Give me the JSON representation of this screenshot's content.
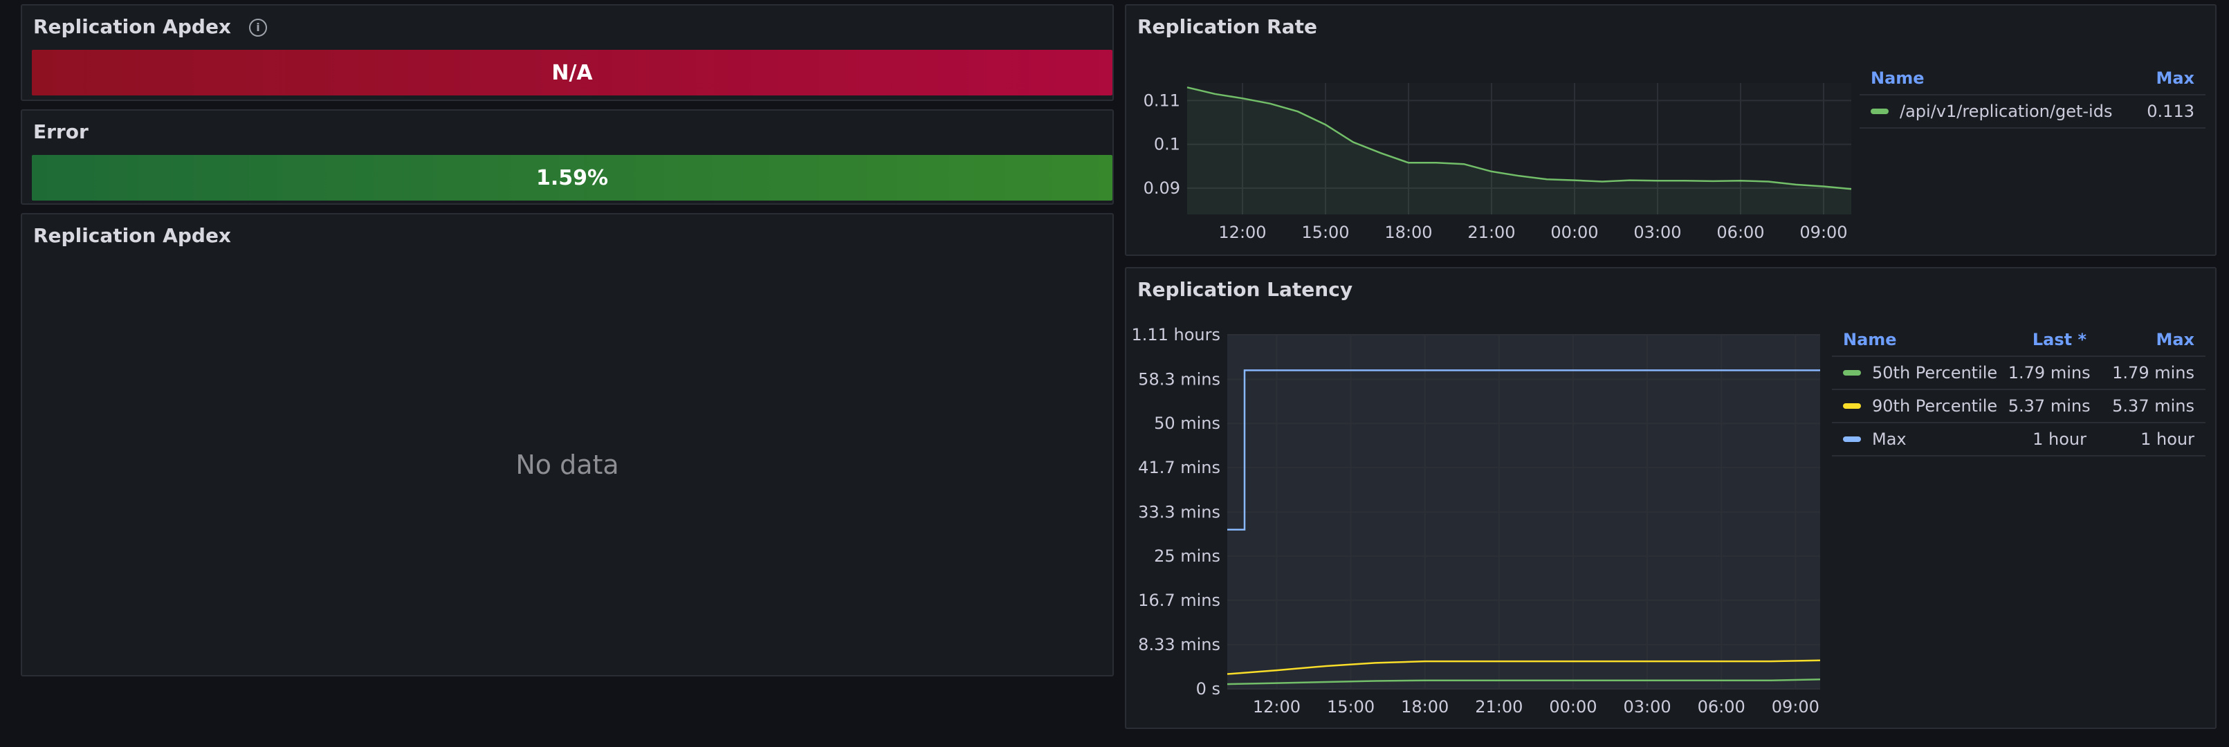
{
  "panels": {
    "apdex_stat": {
      "title": "Replication Apdex",
      "value": "N/A"
    },
    "error_stat": {
      "title": "Error",
      "value": "1.59%"
    },
    "apdex_chart": {
      "title": "Replication Apdex",
      "empty": "No data"
    },
    "rate": {
      "title": "Replication Rate"
    },
    "latency": {
      "title": "Replication Latency"
    }
  },
  "colors": {
    "green": "#73bf69",
    "yellow": "#fade2a",
    "blue": "#8ab8ff",
    "stat_red_from": "#8e1122",
    "stat_red_to": "#ad0a3d",
    "stat_green_from": "#1f6b36",
    "stat_green_to": "#37872d"
  },
  "legends": {
    "rate": {
      "headers": [
        "Name",
        "Max"
      ],
      "rows": [
        {
          "name": "/api/v1/replication/get-ids",
          "color": "#73bf69",
          "max": "0.113"
        }
      ]
    },
    "latency": {
      "headers": [
        "Name",
        "Last *",
        "Max"
      ],
      "rows": [
        {
          "name": "50th Percentile",
          "color": "#73bf69",
          "last": "1.79 mins",
          "max": "1.79 mins"
        },
        {
          "name": "90th Percentile",
          "color": "#fade2a",
          "last": "5.37 mins",
          "max": "5.37 mins"
        },
        {
          "name": "Max",
          "color": "#8ab8ff",
          "last": "1 hour",
          "max": "1 hour"
        }
      ]
    }
  },
  "chart_data": [
    {
      "type": "line",
      "title": "Replication Rate",
      "x_ticks": [
        "12:00",
        "15:00",
        "18:00",
        "21:00",
        "00:00",
        "03:00",
        "06:00",
        "09:00"
      ],
      "y_ticks": [
        {
          "label": "0.11",
          "value": 0.11
        },
        {
          "label": "0.1",
          "value": 0.1
        },
        {
          "label": "0.09",
          "value": 0.09
        }
      ],
      "ylim": [
        0.084,
        0.114
      ],
      "xlim": [
        10.0,
        34.0
      ],
      "grid": true,
      "series": [
        {
          "name": "/api/v1/replication/get-ids",
          "color": "#73bf69",
          "x": [
            10,
            11,
            12,
            13,
            14,
            15,
            16,
            17,
            18,
            19,
            20,
            21,
            22,
            23,
            24,
            25,
            26,
            27,
            28,
            29,
            30,
            31,
            32,
            33,
            34
          ],
          "y": [
            0.113,
            0.1115,
            0.1105,
            0.1093,
            0.1075,
            0.1045,
            0.1005,
            0.098,
            0.0958,
            0.0958,
            0.0955,
            0.0938,
            0.0928,
            0.092,
            0.0918,
            0.0915,
            0.0918,
            0.0917,
            0.0917,
            0.0916,
            0.0917,
            0.0915,
            0.0908,
            0.0904,
            0.0898
          ]
        }
      ]
    },
    {
      "type": "line",
      "title": "Replication Latency",
      "x_ticks": [
        "12:00",
        "15:00",
        "18:00",
        "21:00",
        "00:00",
        "03:00",
        "06:00",
        "09:00"
      ],
      "y_ticks": [
        {
          "label": "1.11 hours",
          "value": 66.7
        },
        {
          "label": "58.3 mins",
          "value": 58.3
        },
        {
          "label": "50 mins",
          "value": 50
        },
        {
          "label": "41.7 mins",
          "value": 41.7
        },
        {
          "label": "33.3 mins",
          "value": 33.3
        },
        {
          "label": "25 mins",
          "value": 25
        },
        {
          "label": "16.7 mins",
          "value": 16.7
        },
        {
          "label": "8.33 mins",
          "value": 8.33
        },
        {
          "label": "0 s",
          "value": 0
        }
      ],
      "ylim": [
        0,
        66.7
      ],
      "xlim": [
        10.0,
        34.0
      ],
      "grid": true,
      "series": [
        {
          "name": "Max",
          "color": "#8ab8ff",
          "x": [
            10,
            10.7,
            10.7,
            34
          ],
          "y": [
            30,
            30,
            60,
            60
          ]
        },
        {
          "name": "90th Percentile",
          "color": "#fade2a",
          "x": [
            10,
            12,
            14,
            16,
            18,
            20,
            22,
            24,
            26,
            28,
            30,
            32,
            34
          ],
          "y": [
            2.8,
            3.5,
            4.3,
            4.9,
            5.2,
            5.2,
            5.2,
            5.2,
            5.2,
            5.2,
            5.2,
            5.2,
            5.37
          ]
        },
        {
          "name": "50th Percentile",
          "color": "#73bf69",
          "x": [
            10,
            12,
            14,
            16,
            18,
            20,
            22,
            24,
            26,
            28,
            30,
            32,
            34
          ],
          "y": [
            0.9,
            1.1,
            1.3,
            1.5,
            1.6,
            1.6,
            1.6,
            1.6,
            1.6,
            1.6,
            1.6,
            1.6,
            1.79
          ]
        }
      ]
    }
  ]
}
